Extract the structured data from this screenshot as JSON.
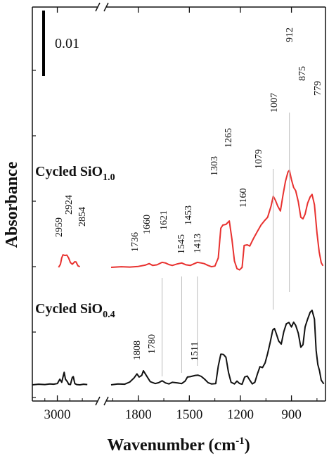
{
  "chart_data": {
    "type": "line",
    "xlabel": "Wavenumber (cm",
    "xlabel_sup": "-1",
    "xlabel_suffix": ")",
    "ylabel": "Absorbance",
    "x_reversed": true,
    "x_broken_axis": true,
    "x_segments": [
      {
        "range": [
          3200,
          2750
        ],
        "ticks": [
          3000
        ]
      },
      {
        "range": [
          1960,
          700
        ],
        "ticks": [
          1800,
          1500,
          1200,
          900
        ]
      }
    ],
    "scale_bar": {
      "value": 0.01,
      "label": "0.01"
    },
    "series": [
      {
        "name_main": "Cycled SiO",
        "name_sub": "1.0",
        "color": "#e8312f",
        "peaks": [
          "2959",
          "2924",
          "2854",
          "1736",
          "1660",
          "1621",
          "1545",
          "1453",
          "1413",
          "1303",
          "1265",
          "1160",
          "1079",
          "1007",
          "912",
          "875",
          "779"
        ],
        "segment_1": [
          [
            2990,
            0.0
          ],
          [
            2975,
            0.001
          ],
          [
            2965,
            0.003
          ],
          [
            2955,
            0.004
          ],
          [
            2940,
            0.0038
          ],
          [
            2924,
            0.0039
          ],
          [
            2910,
            0.003
          ],
          [
            2895,
            0.0015
          ],
          [
            2880,
            0.001
          ],
          [
            2860,
            0.0018
          ],
          [
            2850,
            0.0017
          ],
          [
            2835,
            0.0005
          ],
          [
            2820,
            0.0002
          ]
        ],
        "segment_2": [
          [
            1960,
            0.0
          ],
          [
            1900,
            0.0002
          ],
          [
            1850,
            0.0001
          ],
          [
            1800,
            0.0003
          ],
          [
            1760,
            0.0007
          ],
          [
            1736,
            0.0012
          ],
          [
            1715,
            0.0006
          ],
          [
            1690,
            0.0008
          ],
          [
            1660,
            0.0016
          ],
          [
            1640,
            0.0014
          ],
          [
            1621,
            0.0009
          ],
          [
            1600,
            0.0006
          ],
          [
            1570,
            0.0011
          ],
          [
            1545,
            0.0014
          ],
          [
            1520,
            0.0008
          ],
          [
            1495,
            0.0006
          ],
          [
            1470,
            0.0012
          ],
          [
            1453,
            0.0016
          ],
          [
            1430,
            0.0014
          ],
          [
            1413,
            0.0012
          ],
          [
            1390,
            0.0006
          ],
          [
            1370,
            0.0002
          ],
          [
            1350,
            0.0004
          ],
          [
            1330,
            0.003
          ],
          [
            1315,
            0.0125
          ],
          [
            1303,
            0.0135
          ],
          [
            1285,
            0.0137
          ],
          [
            1265,
            0.0148
          ],
          [
            1250,
            0.009
          ],
          [
            1235,
            0.002
          ],
          [
            1220,
            -0.0004
          ],
          [
            1205,
            -0.0008
          ],
          [
            1190,
            0.0
          ],
          [
            1178,
            0.007
          ],
          [
            1160,
            0.0072
          ],
          [
            1145,
            0.0068
          ],
          [
            1125,
            0.009
          ],
          [
            1100,
            0.0115
          ],
          [
            1079,
            0.0135
          ],
          [
            1060,
            0.0148
          ],
          [
            1040,
            0.016
          ],
          [
            1020,
            0.0195
          ],
          [
            1007,
            0.0227
          ],
          [
            995,
            0.0215
          ],
          [
            980,
            0.0195
          ],
          [
            965,
            0.018
          ],
          [
            950,
            0.023
          ],
          [
            935,
            0.0275
          ],
          [
            920,
            0.0305
          ],
          [
            912,
            0.031
          ],
          [
            900,
            0.028
          ],
          [
            887,
            0.0255
          ],
          [
            875,
            0.0245
          ],
          [
            860,
            0.021
          ],
          [
            845,
            0.016
          ],
          [
            832,
            0.0155
          ],
          [
            820,
            0.017
          ],
          [
            805,
            0.0205
          ],
          [
            790,
            0.0225
          ],
          [
            779,
            0.0233
          ],
          [
            765,
            0.02
          ],
          [
            750,
            0.011
          ],
          [
            737,
            0.005
          ],
          [
            725,
            0.0015
          ],
          [
            715,
            0.0005
          ]
        ]
      },
      {
        "name_main": "Cycled SiO",
        "name_sub": "0.4",
        "color": "#111111",
        "peaks": [
          "1808",
          "1780",
          "1511"
        ],
        "segment_1": [
          [
            3200,
            0.0
          ],
          [
            3150,
            0.0002
          ],
          [
            3100,
            0.0001
          ],
          [
            3060,
            0.0003
          ],
          [
            3030,
            0.0002
          ],
          [
            3000,
            0.0004
          ],
          [
            2980,
            0.0018
          ],
          [
            2965,
            0.0008
          ],
          [
            2955,
            0.0025
          ],
          [
            2945,
            0.004
          ],
          [
            2935,
            0.0018
          ],
          [
            2920,
            0.001
          ],
          [
            2910,
            0.0002
          ],
          [
            2895,
            0.0001
          ],
          [
            2880,
            0.0024
          ],
          [
            2872,
            0.0026
          ],
          [
            2860,
            0.0004
          ],
          [
            2845,
            0.0001
          ],
          [
            2820,
            0.0
          ],
          [
            2790,
            0.0002
          ],
          [
            2760,
            0.0001
          ]
        ],
        "segment_2": [
          [
            1960,
            0.0
          ],
          [
            1920,
            0.0003
          ],
          [
            1880,
            0.0002
          ],
          [
            1850,
            0.0009
          ],
          [
            1825,
            0.0022
          ],
          [
            1808,
            0.0035
          ],
          [
            1795,
            0.0025
          ],
          [
            1780,
            0.003
          ],
          [
            1770,
            0.0045
          ],
          [
            1755,
            0.0032
          ],
          [
            1730,
            0.001
          ],
          [
            1700,
            0.0004
          ],
          [
            1680,
            0.0007
          ],
          [
            1660,
            0.0013
          ],
          [
            1640,
            0.0006
          ],
          [
            1620,
            0.0003
          ],
          [
            1600,
            0.0008
          ],
          [
            1570,
            0.0006
          ],
          [
            1545,
            0.0004
          ],
          [
            1525,
            0.0012
          ],
          [
            1511,
            0.0025
          ],
          [
            1495,
            0.0026
          ],
          [
            1480,
            0.0028
          ],
          [
            1465,
            0.003
          ],
          [
            1450,
            0.0031
          ],
          [
            1430,
            0.0027
          ],
          [
            1410,
            0.0018
          ],
          [
            1390,
            0.0007
          ],
          [
            1370,
            0.0003
          ],
          [
            1345,
            0.0004
          ],
          [
            1330,
            0.006
          ],
          [
            1315,
            0.0098
          ],
          [
            1300,
            0.0097
          ],
          [
            1285,
            0.0088
          ],
          [
            1270,
            0.004
          ],
          [
            1255,
            0.0008
          ],
          [
            1235,
            0.0003
          ],
          [
            1220,
            0.0012
          ],
          [
            1205,
            0.0004
          ],
          [
            1190,
            0.0002
          ],
          [
            1175,
            0.0025
          ],
          [
            1160,
            0.0028
          ],
          [
            1145,
            0.0015
          ],
          [
            1130,
            0.0003
          ],
          [
            1115,
            0.0008
          ],
          [
            1100,
            0.0035
          ],
          [
            1085,
            0.0058
          ],
          [
            1070,
            0.0055
          ],
          [
            1055,
            0.007
          ],
          [
            1040,
            0.01
          ],
          [
            1025,
            0.0135
          ],
          [
            1010,
            0.0175
          ],
          [
            1000,
            0.018
          ],
          [
            990,
            0.0165
          ],
          [
            975,
            0.014
          ],
          [
            960,
            0.013
          ],
          [
            945,
            0.017
          ],
          [
            930,
            0.0195
          ],
          [
            915,
            0.0199
          ],
          [
            900,
            0.0185
          ],
          [
            887,
            0.02
          ],
          [
            875,
            0.019
          ],
          [
            860,
            0.0165
          ],
          [
            845,
            0.012
          ],
          [
            832,
            0.0128
          ],
          [
            820,
            0.0185
          ],
          [
            805,
            0.021
          ],
          [
            790,
            0.0232
          ],
          [
            779,
            0.0238
          ],
          [
            765,
            0.021
          ],
          [
            755,
            0.011
          ],
          [
            745,
            0.0065
          ],
          [
            735,
            0.0045
          ],
          [
            725,
            0.0015
          ],
          [
            710,
            0.0003
          ]
        ]
      }
    ]
  }
}
